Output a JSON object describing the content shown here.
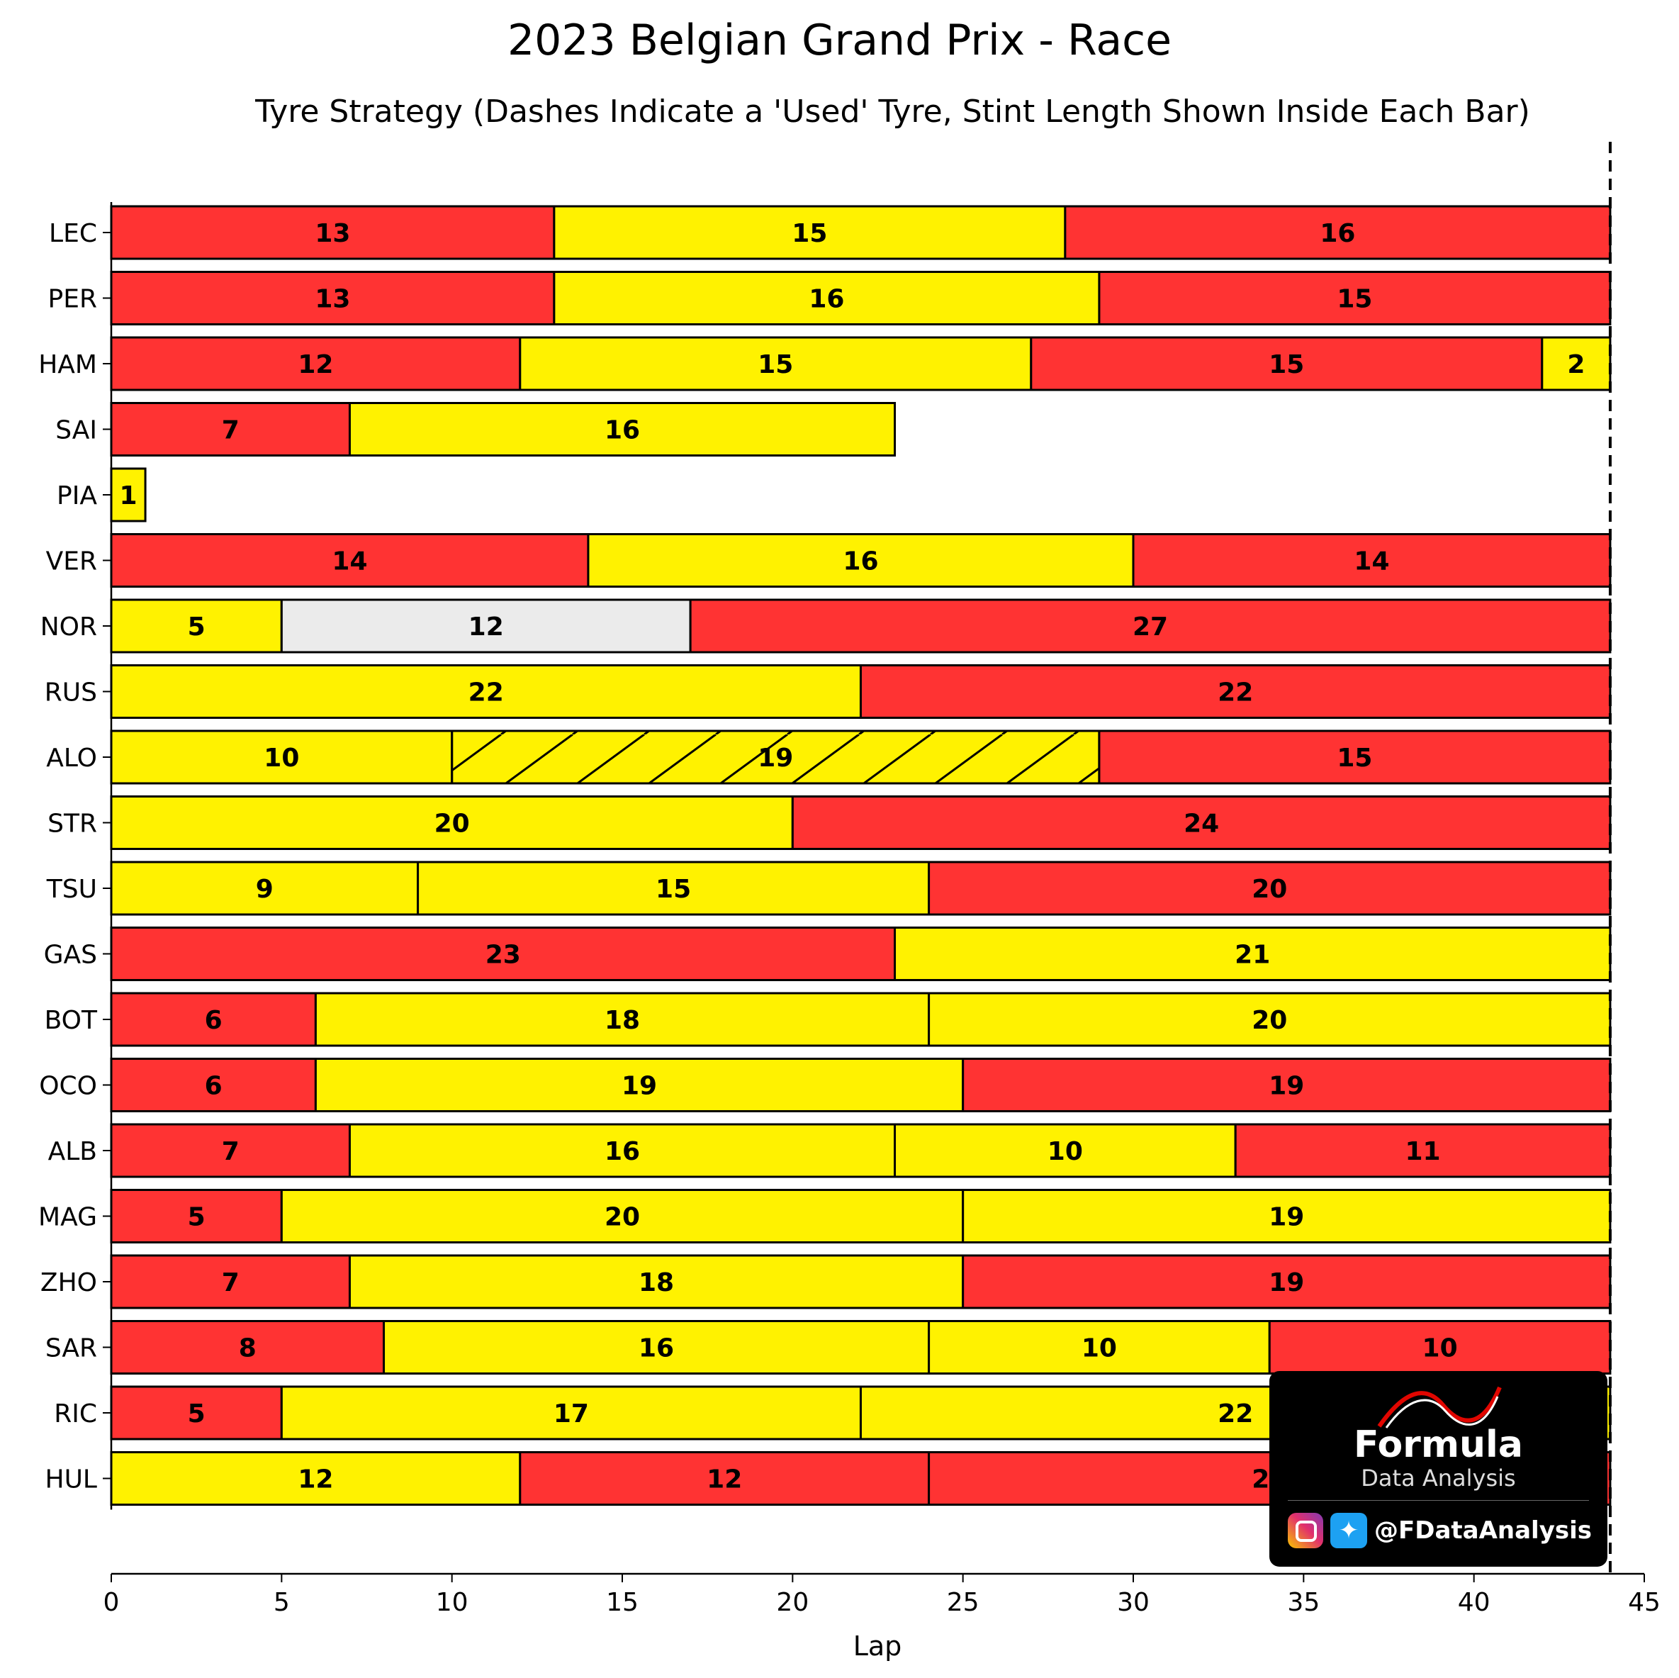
{
  "chart_data": {
    "type": "bar",
    "orientation": "horizontal-stacked",
    "title": "2023 Belgian Grand Prix - Race",
    "subtitle": "Tyre Strategy (Dashes Indicate a 'Used' Tyre, Stint Length Shown Inside Each Bar)",
    "xlabel": "Lap",
    "xlim": [
      0,
      45
    ],
    "x_ticks": [
      0,
      5,
      10,
      15,
      20,
      25,
      30,
      35,
      40,
      45
    ],
    "race_laps_marker": 44,
    "compound_colors": {
      "SOFT": "#ff3333",
      "MEDIUM": "#fff200",
      "HARD": "#ebebeb"
    },
    "drivers": [
      {
        "driver": "LEC",
        "stints": [
          {
            "compound": "SOFT",
            "laps": 13,
            "used": false
          },
          {
            "compound": "MEDIUM",
            "laps": 15,
            "used": false
          },
          {
            "compound": "SOFT",
            "laps": 16,
            "used": false
          }
        ]
      },
      {
        "driver": "PER",
        "stints": [
          {
            "compound": "SOFT",
            "laps": 13,
            "used": false
          },
          {
            "compound": "MEDIUM",
            "laps": 16,
            "used": false
          },
          {
            "compound": "SOFT",
            "laps": 15,
            "used": false
          }
        ]
      },
      {
        "driver": "HAM",
        "stints": [
          {
            "compound": "SOFT",
            "laps": 12,
            "used": false
          },
          {
            "compound": "MEDIUM",
            "laps": 15,
            "used": false
          },
          {
            "compound": "SOFT",
            "laps": 15,
            "used": false
          },
          {
            "compound": "MEDIUM",
            "laps": 2,
            "used": false
          }
        ]
      },
      {
        "driver": "SAI",
        "stints": [
          {
            "compound": "SOFT",
            "laps": 7,
            "used": false
          },
          {
            "compound": "MEDIUM",
            "laps": 16,
            "used": false
          }
        ]
      },
      {
        "driver": "PIA",
        "stints": [
          {
            "compound": "MEDIUM",
            "laps": 1,
            "used": false
          }
        ]
      },
      {
        "driver": "VER",
        "stints": [
          {
            "compound": "SOFT",
            "laps": 14,
            "used": false
          },
          {
            "compound": "MEDIUM",
            "laps": 16,
            "used": false
          },
          {
            "compound": "SOFT",
            "laps": 14,
            "used": false
          }
        ]
      },
      {
        "driver": "NOR",
        "stints": [
          {
            "compound": "MEDIUM",
            "laps": 5,
            "used": false
          },
          {
            "compound": "HARD",
            "laps": 12,
            "used": false
          },
          {
            "compound": "SOFT",
            "laps": 27,
            "used": false
          }
        ]
      },
      {
        "driver": "RUS",
        "stints": [
          {
            "compound": "MEDIUM",
            "laps": 22,
            "used": false
          },
          {
            "compound": "SOFT",
            "laps": 22,
            "used": false
          }
        ]
      },
      {
        "driver": "ALO",
        "stints": [
          {
            "compound": "MEDIUM",
            "laps": 10,
            "used": false
          },
          {
            "compound": "MEDIUM",
            "laps": 19,
            "used": true
          },
          {
            "compound": "SOFT",
            "laps": 15,
            "used": false
          }
        ]
      },
      {
        "driver": "STR",
        "stints": [
          {
            "compound": "MEDIUM",
            "laps": 20,
            "used": false
          },
          {
            "compound": "SOFT",
            "laps": 24,
            "used": false
          }
        ]
      },
      {
        "driver": "TSU",
        "stints": [
          {
            "compound": "MEDIUM",
            "laps": 9,
            "used": false
          },
          {
            "compound": "MEDIUM",
            "laps": 15,
            "used": false
          },
          {
            "compound": "SOFT",
            "laps": 20,
            "used": false
          }
        ]
      },
      {
        "driver": "GAS",
        "stints": [
          {
            "compound": "SOFT",
            "laps": 23,
            "used": false
          },
          {
            "compound": "MEDIUM",
            "laps": 21,
            "used": false
          }
        ]
      },
      {
        "driver": "BOT",
        "stints": [
          {
            "compound": "SOFT",
            "laps": 6,
            "used": false
          },
          {
            "compound": "MEDIUM",
            "laps": 18,
            "used": false
          },
          {
            "compound": "MEDIUM",
            "laps": 20,
            "used": false
          }
        ]
      },
      {
        "driver": "OCO",
        "stints": [
          {
            "compound": "SOFT",
            "laps": 6,
            "used": false
          },
          {
            "compound": "MEDIUM",
            "laps": 19,
            "used": false
          },
          {
            "compound": "SOFT",
            "laps": 19,
            "used": false
          }
        ]
      },
      {
        "driver": "ALB",
        "stints": [
          {
            "compound": "SOFT",
            "laps": 7,
            "used": false
          },
          {
            "compound": "MEDIUM",
            "laps": 16,
            "used": false
          },
          {
            "compound": "MEDIUM",
            "laps": 10,
            "used": false
          },
          {
            "compound": "SOFT",
            "laps": 11,
            "used": false
          }
        ]
      },
      {
        "driver": "MAG",
        "stints": [
          {
            "compound": "SOFT",
            "laps": 5,
            "used": false
          },
          {
            "compound": "MEDIUM",
            "laps": 20,
            "used": false
          },
          {
            "compound": "MEDIUM",
            "laps": 19,
            "used": false
          }
        ]
      },
      {
        "driver": "ZHO",
        "stints": [
          {
            "compound": "SOFT",
            "laps": 7,
            "used": false
          },
          {
            "compound": "MEDIUM",
            "laps": 18,
            "used": false
          },
          {
            "compound": "SOFT",
            "laps": 19,
            "used": false
          }
        ]
      },
      {
        "driver": "SAR",
        "stints": [
          {
            "compound": "SOFT",
            "laps": 8,
            "used": false
          },
          {
            "compound": "MEDIUM",
            "laps": 16,
            "used": false
          },
          {
            "compound": "MEDIUM",
            "laps": 10,
            "used": false
          },
          {
            "compound": "SOFT",
            "laps": 10,
            "used": false
          }
        ]
      },
      {
        "driver": "RIC",
        "stints": [
          {
            "compound": "SOFT",
            "laps": 5,
            "used": false
          },
          {
            "compound": "MEDIUM",
            "laps": 17,
            "used": false
          },
          {
            "compound": "MEDIUM",
            "laps": 22,
            "used": false
          }
        ]
      },
      {
        "driver": "HUL",
        "stints": [
          {
            "compound": "MEDIUM",
            "laps": 12,
            "used": false
          },
          {
            "compound": "SOFT",
            "laps": 12,
            "used": false
          },
          {
            "compound": "SOFT",
            "laps": 20,
            "used": false
          }
        ]
      }
    ]
  },
  "watermark": {
    "brand": "Formula",
    "subtitle": "Data Analysis",
    "handle": "@FDataAnalysis",
    "icons": [
      "instagram-icon",
      "twitter-icon"
    ]
  }
}
